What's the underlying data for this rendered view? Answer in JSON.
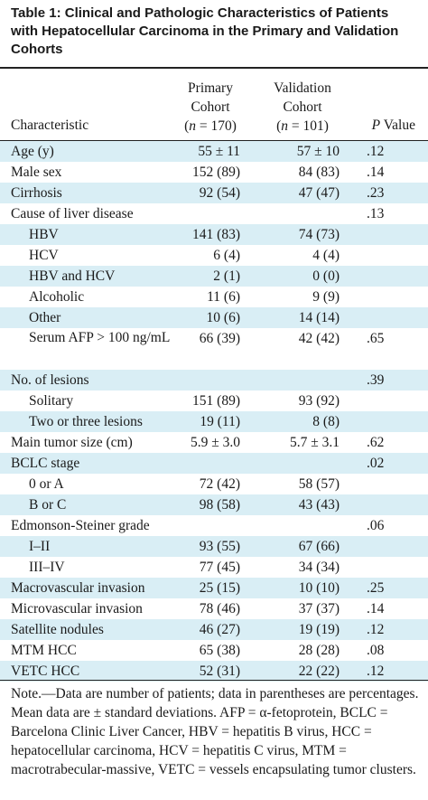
{
  "title": "Table 1: Clinical and Pathologic Characteristics of Patients with Hepatocellular Carcinoma in the Primary and Validation Cohorts",
  "header": {
    "characteristic": "Characteristic",
    "primary_line1": "Primary",
    "primary_line2": "Cohort",
    "primary_n_label": "n",
    "primary_n_value": " = 170)",
    "validation_line1": "Validation",
    "validation_line2": "Cohort",
    "validation_n_label": "n",
    "validation_n_value": " = 101)",
    "p_letter": "P",
    "p_rest": " Value"
  },
  "rows": [
    {
      "name": "Age (y)",
      "primary": "55 ± 11",
      "validation": "57 ± 10",
      "p": ".12",
      "shade": true,
      "indent": false
    },
    {
      "name": "Male sex",
      "primary": "152 (89)",
      "validation": "84 (83)",
      "p": ".14",
      "shade": false,
      "indent": false
    },
    {
      "name": "Cirrhosis",
      "primary": "92 (54)",
      "validation": "47 (47)",
      "p": ".23",
      "shade": true,
      "indent": false
    },
    {
      "name": "Cause of liver disease",
      "primary": "",
      "validation": "",
      "p": ".13",
      "shade": false,
      "indent": false
    },
    {
      "name": "HBV",
      "primary": "141 (83)",
      "validation": "74 (73)",
      "p": "",
      "shade": true,
      "indent": true
    },
    {
      "name": "HCV",
      "primary": "6 (4)",
      "validation": "4 (4)",
      "p": "",
      "shade": false,
      "indent": true
    },
    {
      "name": "HBV and HCV",
      "primary": "2 (1)",
      "validation": "0 (0)",
      "p": "",
      "shade": true,
      "indent": true
    },
    {
      "name": "Alcoholic",
      "primary": "11 (6)",
      "validation": "9 (9)",
      "p": "",
      "shade": false,
      "indent": true
    },
    {
      "name": "Other",
      "primary": "10 (6)",
      "validation": "14 (14)",
      "p": "",
      "shade": true,
      "indent": true
    },
    {
      "name": "Serum AFP > 100 ng/mL",
      "primary": "66 (39)",
      "validation": "42 (42)",
      "p": ".65",
      "shade": false,
      "indent": true,
      "tall": true
    },
    {
      "name": "No. of lesions",
      "primary": "",
      "validation": "",
      "p": ".39",
      "shade": true,
      "indent": false
    },
    {
      "name": "Solitary",
      "primary": "151 (89)",
      "validation": "93 (92)",
      "p": "",
      "shade": false,
      "indent": true
    },
    {
      "name": "Two or three lesions",
      "primary": "19 (11)",
      "validation": "8 (8)",
      "p": "",
      "shade": true,
      "indent": true
    },
    {
      "name": "Main tumor size (cm)",
      "primary": "5.9 ± 3.0",
      "validation": "5.7 ± 3.1",
      "p": ".62",
      "shade": false,
      "indent": false
    },
    {
      "name": "BCLC stage",
      "primary": "",
      "validation": "",
      "p": ".02",
      "shade": true,
      "indent": false
    },
    {
      "name": "0 or A",
      "primary": "72 (42)",
      "validation": "58 (57)",
      "p": "",
      "shade": false,
      "indent": true
    },
    {
      "name": "B or C",
      "primary": "98 (58)",
      "validation": "43 (43)",
      "p": "",
      "shade": true,
      "indent": true
    },
    {
      "name": "Edmonson-Steiner grade",
      "primary": "",
      "validation": "",
      "p": ".06",
      "shade": false,
      "indent": false
    },
    {
      "name": "I–II",
      "primary": "93 (55)",
      "validation": "67 (66)",
      "p": "",
      "shade": true,
      "indent": true
    },
    {
      "name": "III–IV",
      "primary": "77 (45)",
      "validation": "34 (34)",
      "p": "",
      "shade": false,
      "indent": true
    },
    {
      "name": "Macrovascular invasion",
      "primary": "25 (15)",
      "validation": "10 (10)",
      "p": ".25",
      "shade": true,
      "indent": false
    },
    {
      "name": "Microvascular invasion",
      "primary": "78 (46)",
      "validation": "37 (37)",
      "p": ".14",
      "shade": false,
      "indent": false
    },
    {
      "name": "Satellite nodules",
      "primary": "46 (27)",
      "validation": "19 (19)",
      "p": ".12",
      "shade": true,
      "indent": false
    },
    {
      "name": "MTM HCC",
      "primary": "65 (38)",
      "validation": "28 (28)",
      "p": ".08",
      "shade": false,
      "indent": false
    },
    {
      "name": "VETC HCC",
      "primary": "52 (31)",
      "validation": "22 (22)",
      "p": ".12",
      "shade": true,
      "indent": false
    }
  ],
  "note": "Note.—Data are number of patients; data in parentheses are percentages. Mean data are ± standard deviations. AFP = α-fetoprotein, BCLC = Barcelona Clinic Liver Cancer, HBV = hepatitis B virus, HCC = hepatocellular carcinoma, HCV = hepatitis C virus, MTM = macrotrabecular-massive, VETC = vessels encapsulating tumor clusters."
}
